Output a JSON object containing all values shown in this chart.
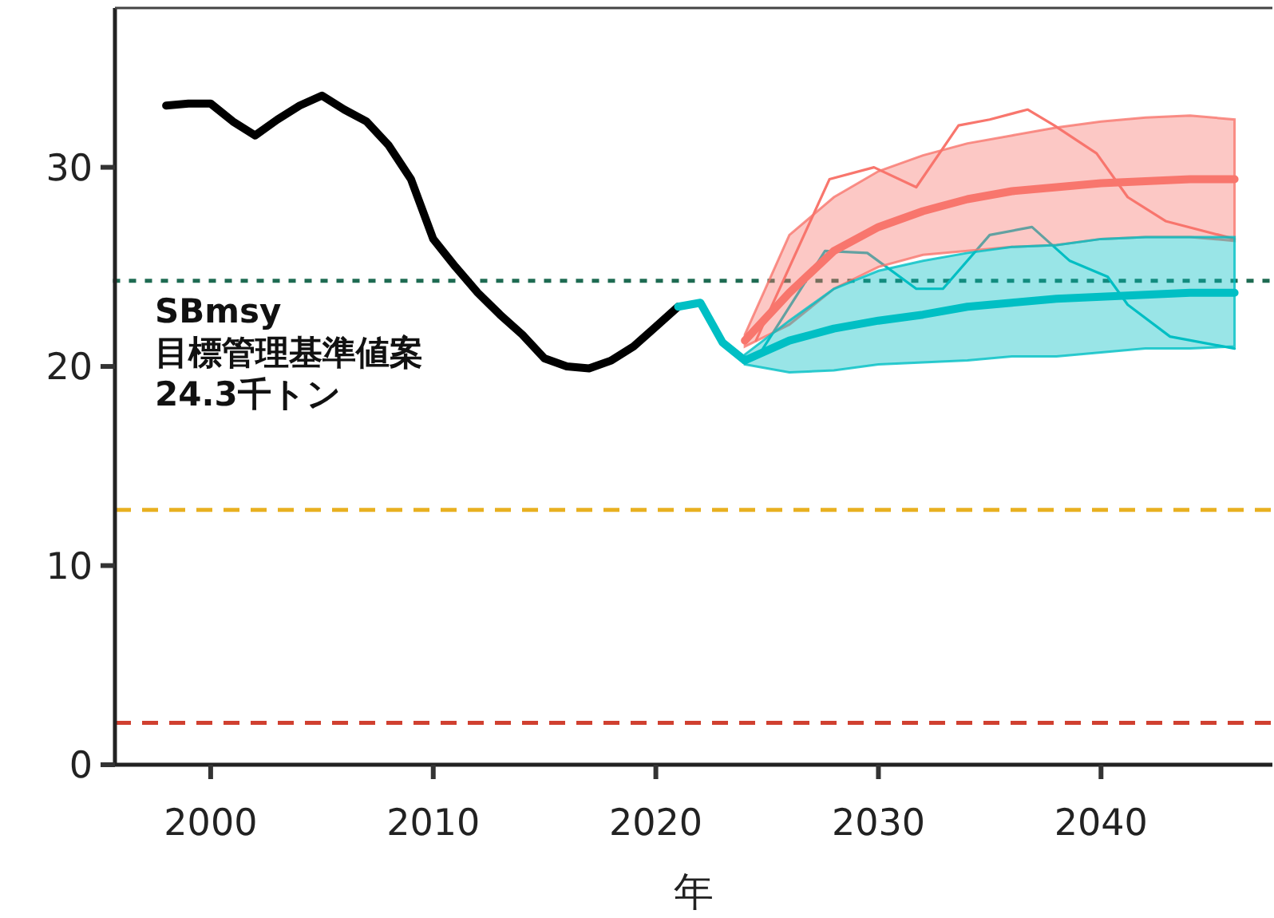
{
  "chart_data": {
    "type": "line",
    "xlabel": "年",
    "xlim": [
      1995.7,
      2047.7
    ],
    "ylim": [
      0,
      38
    ],
    "xticks": [
      2000,
      2010,
      2020,
      2030,
      2040
    ],
    "yticks": [
      0,
      10,
      20,
      30
    ],
    "series": [
      {
        "color": "#000000",
        "x": [
          1998,
          1999,
          2000,
          2001,
          2002,
          2003,
          2004,
          2005,
          2006,
          2007,
          2008,
          2009,
          2010,
          2011,
          2012,
          2013,
          2014,
          2015,
          2016,
          2017,
          2018,
          2019,
          2020,
          2021
        ],
        "values": [
          33.1,
          33.2,
          33.2,
          32.3,
          31.6,
          32.4,
          33.1,
          33.6,
          32.9,
          32.3,
          31.1,
          29.4,
          26.4,
          25.0,
          23.7,
          22.6,
          21.6,
          20.4,
          20.0,
          19.9,
          20.3,
          21.0,
          22.0,
          23.0
        ]
      },
      {
        "color": "#00bfc4",
        "x": [
          2021,
          2022,
          2023,
          2024
        ],
        "values": [
          23.0,
          23.2,
          21.2,
          20.3
        ]
      },
      {
        "color": "#f8766d",
        "x": [
          2024,
          2026,
          2028,
          2030,
          2032,
          2034,
          2036,
          2038,
          2040,
          2042,
          2044,
          2046
        ],
        "values": [
          21.3,
          23.7,
          25.8,
          27.0,
          27.8,
          28.4,
          28.8,
          29.0,
          29.2,
          29.3,
          29.4,
          29.4
        ],
        "lower": [
          21.0,
          22.1,
          23.9,
          25.0,
          25.6,
          25.8,
          26.0,
          26.1,
          26.4,
          26.5,
          26.5,
          26.3
        ],
        "upper": [
          21.6,
          26.6,
          28.5,
          29.8,
          30.6,
          31.2,
          31.6,
          32.0,
          32.3,
          32.5,
          32.6,
          32.4
        ]
      },
      {
        "color": "#00bfc4",
        "x": [
          2024,
          2026,
          2028,
          2030,
          2032,
          2034,
          2036,
          2038,
          2040,
          2042,
          2044,
          2046
        ],
        "values": [
          20.3,
          21.3,
          21.9,
          22.3,
          22.6,
          23.0,
          23.2,
          23.4,
          23.5,
          23.6,
          23.7,
          23.7
        ],
        "lower": [
          20.1,
          19.7,
          19.8,
          20.1,
          20.2,
          20.3,
          20.5,
          20.5,
          20.7,
          20.9,
          20.9,
          21.0
        ],
        "upper": [
          20.6,
          22.3,
          23.9,
          24.8,
          25.3,
          25.7,
          26.0,
          26.1,
          26.4,
          26.5,
          26.5,
          26.5
        ]
      },
      {
        "color": "#f8766d",
        "x": [
          2024.5,
          2027.8,
          2029.8,
          2031.7,
          2033.6,
          2035.0,
          2036.7,
          2037.9,
          2039.8,
          2041.2,
          2042.9,
          2046.0
        ],
        "values": [
          21.3,
          29.4,
          30.0,
          29.0,
          32.1,
          32.4,
          32.9,
          32.1,
          30.7,
          28.5,
          27.3,
          26.4
        ]
      },
      {
        "color": "#00bfc4",
        "x": [
          2024.7,
          2027.6,
          2029.5,
          2031.7,
          2032.9,
          2035.0,
          2036.9,
          2038.6,
          2040.3,
          2041.2,
          2043.1,
          2046.0
        ],
        "values": [
          20.7,
          25.8,
          25.7,
          23.9,
          23.9,
          26.6,
          27.0,
          25.3,
          24.5,
          23.1,
          21.5,
          20.9
        ]
      }
    ],
    "ref_lines": [
      {
        "axis": "y",
        "value": 24.3,
        "label": "SBmsy\n目標管理基準値案\n24.3千トン",
        "color": "#1e6b52",
        "line_style": "dotted"
      },
      {
        "axis": "y",
        "value": 12.8,
        "color": "#e8b020",
        "line_style": "dashed"
      },
      {
        "axis": "y",
        "value": 2.1,
        "color": "#d04030",
        "line_style": "dashed"
      }
    ]
  }
}
